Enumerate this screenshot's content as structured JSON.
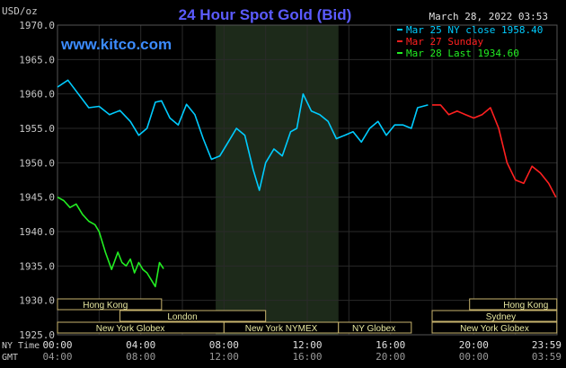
{
  "chart_data": {
    "type": "line",
    "title": "24 Hour Spot Gold (Bid)",
    "watermark": "www.kitco.com",
    "date_stamp": "March 28, 2022 03:53",
    "ylabel": "USD/oz",
    "ylim": [
      1925.0,
      1970.0
    ],
    "yticks": [
      "1970.0",
      "1965.0",
      "1960.0",
      "1955.0",
      "1950.0",
      "1945.0",
      "1940.0",
      "1935.0",
      "1930.0",
      "1925.0"
    ],
    "x_axis_rows": [
      {
        "label": "NY Time",
        "ticks": [
          "00:00",
          "04:00",
          "08:00",
          "12:00",
          "16:00",
          "20:00",
          "23:59"
        ]
      },
      {
        "label": "GMT",
        "ticks": [
          "04:00",
          "08:00",
          "12:00",
          "16:00",
          "20:00",
          "00:00",
          "03:59"
        ]
      }
    ],
    "grid": true,
    "legend_position": "top-right",
    "colors": {
      "background": "#000000",
      "grid": "#2a2a2a",
      "axis_text": "#c8c8c8",
      "title": "#5b5bff",
      "watermark": "#3c8cff",
      "session_fill": "#000000",
      "session_border": "#c8b46e",
      "session_text": "#e8e8a0",
      "highlight_band": "#1d2a1a"
    },
    "highlight_band_hours": [
      7.6,
      13.5
    ],
    "series": [
      {
        "name": "Mar 25 NY close 1958.40",
        "color": "#00ccff",
        "x_hours": [
          0,
          0.5,
          1,
          1.5,
          2,
          2.5,
          3,
          3.5,
          3.9,
          4.3,
          4.7,
          5.0,
          5.4,
          5.8,
          6.2,
          6.6,
          7.0,
          7.4,
          7.8,
          8.2,
          8.6,
          9.0,
          9.4,
          9.7,
          10.0,
          10.4,
          10.8,
          11.2,
          11.5,
          11.8,
          12.2,
          12.6,
          13.0,
          13.4,
          13.8,
          14.2,
          14.6,
          15.0,
          15.4,
          15.8,
          16.2,
          16.6,
          17.0,
          17.3,
          17.8
        ],
        "values": [
          1961.0,
          1962.0,
          1960.0,
          1958.0,
          1958.2,
          1957.0,
          1957.6,
          1956.0,
          1954.0,
          1955.0,
          1958.8,
          1959.0,
          1956.5,
          1955.5,
          1958.5,
          1957.0,
          1953.5,
          1950.5,
          1951.0,
          1953.0,
          1955.0,
          1954.0,
          1949.0,
          1946.0,
          1950.0,
          1952.0,
          1951.0,
          1954.5,
          1955.0,
          1960.0,
          1957.5,
          1957.0,
          1956.0,
          1953.5,
          1954.0,
          1954.5,
          1953.0,
          1955.0,
          1956.0,
          1954.0,
          1955.5,
          1955.5,
          1955.0,
          1958.0,
          1958.4
        ]
      },
      {
        "name": "Mar 27 Sunday",
        "color": "#ff2020",
        "x_hours": [
          18.0,
          18.4,
          18.8,
          19.2,
          19.6,
          20.0,
          20.4,
          20.8,
          21.2,
          21.6,
          22.0,
          22.4,
          22.8,
          23.2,
          23.6,
          23.95
        ],
        "values": [
          1958.4,
          1958.4,
          1957.0,
          1957.5,
          1957.0,
          1956.5,
          1957.0,
          1958.0,
          1955.0,
          1950.0,
          1947.5,
          1947.0,
          1949.5,
          1948.5,
          1947.0,
          1945.0
        ]
      },
      {
        "name": "Mar 28 Last 1934.60",
        "color": "#22ee22",
        "x_hours": [
          0,
          0.3,
          0.6,
          0.9,
          1.2,
          1.5,
          1.8,
          2.0,
          2.3,
          2.6,
          2.9,
          3.1,
          3.3,
          3.5,
          3.7,
          3.9,
          4.1,
          4.3,
          4.5,
          4.7,
          4.9,
          5.1
        ],
        "values": [
          1945.0,
          1944.5,
          1943.5,
          1944.0,
          1942.5,
          1941.5,
          1941.0,
          1940.0,
          1937.0,
          1934.5,
          1937.0,
          1935.5,
          1935.0,
          1936.0,
          1934.0,
          1935.5,
          1934.5,
          1934.0,
          1933.0,
          1932.0,
          1935.5,
          1934.6
        ]
      }
    ],
    "sessions": [
      {
        "name": "Hong Kong",
        "start_hour": 0,
        "end_hour": 5.0,
        "row": 1,
        "label_offset_hours": 2.3
      },
      {
        "name": "Hong Kong",
        "start_hour": 19.8,
        "end_hour": 23.99,
        "row": 1,
        "label_offset_hours": 22.5
      },
      {
        "name": "London",
        "start_hour": 3.0,
        "end_hour": 10.0,
        "row": 2,
        "label_offset_hours": 6.0
      },
      {
        "name": "Sydney",
        "start_hour": 18.0,
        "end_hour": 23.99,
        "row": 2,
        "label_offset_hours": 21.3
      },
      {
        "name": "New York Globex",
        "start_hour": 0,
        "end_hour": 8.0,
        "row": 3,
        "label_offset_hours": 3.5
      },
      {
        "name": "New York NYMEX",
        "start_hour": 8.0,
        "end_hour": 13.5,
        "row": 3,
        "label_offset_hours": 10.75
      },
      {
        "name": "NY Globex",
        "start_hour": 13.5,
        "end_hour": 17.0,
        "row": 3,
        "label_offset_hours": 15.2
      },
      {
        "name": "New York Globex",
        "start_hour": 18.0,
        "end_hour": 23.99,
        "row": 3,
        "label_offset_hours": 21.0
      }
    ]
  }
}
